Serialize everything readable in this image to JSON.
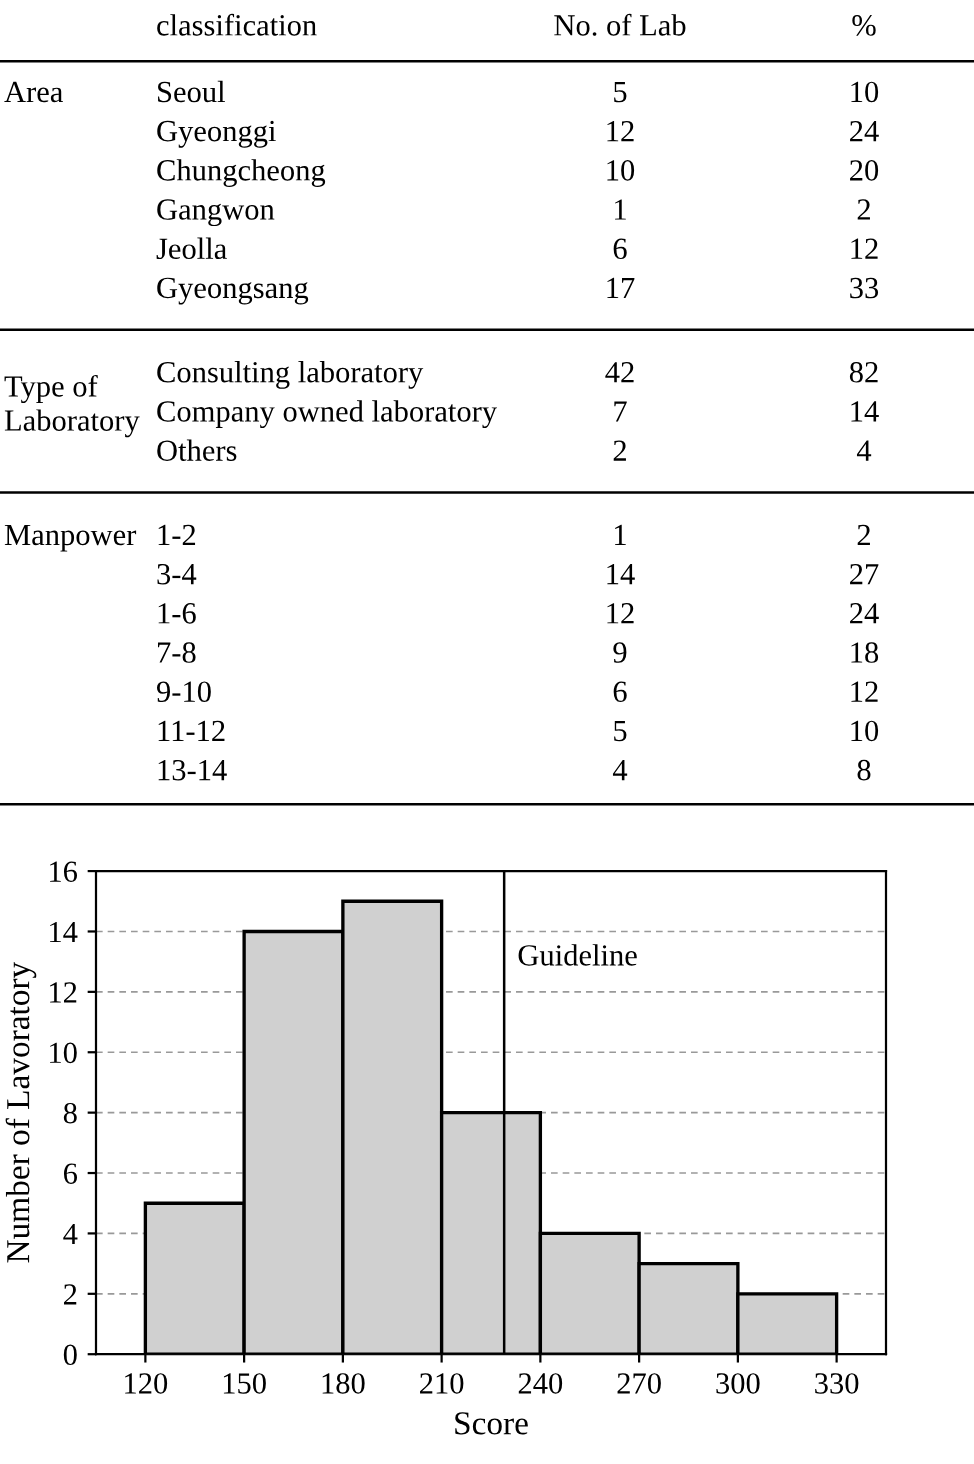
{
  "chart_data": [
    {
      "type": "other",
      "annotations": [
        "classification",
        "No. of Lab",
        "%"
      ]
    },
    {
      "type": "other",
      "title": "Area",
      "annotations": [
        "Seoul",
        "5",
        "10",
        "Gyeonggi",
        "12",
        "24",
        "Chungcheong",
        "10",
        "20",
        "Gangwon",
        "1",
        "2",
        "Jeolla",
        "6",
        "12",
        "Gyeongsang",
        "17",
        "33"
      ]
    },
    {
      "type": "other",
      "title": "Type of\nLaboratory",
      "annotations": [
        "Consulting laboratory",
        "42",
        "82",
        "Company owned laboratory",
        "7",
        "14",
        "Others",
        "2",
        "4"
      ]
    },
    {
      "type": "other",
      "title": "Manpower",
      "annotations": [
        "1-2",
        "1",
        "2",
        "3-4",
        "14",
        "27",
        "1-6",
        "12",
        "24",
        "7-8",
        "9",
        "18",
        "9-10",
        "6",
        "12",
        "11-12",
        "5",
        "10",
        "13-14",
        "4",
        "8"
      ]
    },
    {
      "type": "histogram",
      "xlabel": "Score",
      "ylabel": "Number of Lavoratory",
      "bins": [
        120,
        150,
        180,
        210,
        240,
        270,
        300,
        330
      ],
      "values": [
        5,
        14,
        15,
        8,
        4,
        3,
        2
      ],
      "color": "#d0d0d0",
      "xlim": [
        105,
        345
      ],
      "xticks": [
        120,
        150,
        180,
        210,
        240,
        270,
        300,
        330
      ],
      "ylim": [
        0,
        16
      ],
      "yticks": [
        0,
        2,
        4,
        6,
        8,
        10,
        12,
        14,
        16
      ],
      "grid": "y",
      "ref_lines": [
        {
          "axis": "x",
          "value": 229,
          "label": "Guideline",
          "color": "#000000"
        }
      ]
    }
  ]
}
